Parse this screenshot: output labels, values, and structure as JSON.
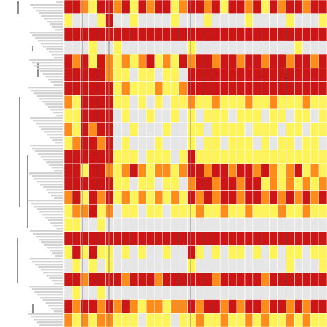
{
  "chart_data": {
    "type": "heatmap",
    "colors": [
      "#e6e6e6",
      "#fff35a",
      "#ff8c1a",
      "#cc1616"
    ],
    "values": [
      [
        3,
        3,
        2,
        1,
        3,
        3,
        2,
        3,
        1,
        3,
        2,
        3,
        3,
        1,
        2,
        3,
        3,
        2,
        3,
        1,
        3,
        3,
        2,
        3,
        1,
        3,
        2,
        3,
        3,
        2,
        3,
        3
      ],
      [
        1,
        0,
        0,
        0,
        1,
        3,
        0,
        0,
        1,
        0,
        0,
        0,
        0,
        1,
        0,
        0,
        0,
        1,
        0,
        0,
        0,
        0,
        1,
        0,
        0,
        0,
        0,
        1,
        0,
        0,
        0,
        1
      ],
      [
        3,
        3,
        3,
        3,
        3,
        3,
        3,
        3,
        3,
        3,
        3,
        3,
        3,
        3,
        3,
        3,
        3,
        3,
        3,
        3,
        3,
        3,
        3,
        3,
        3,
        3,
        3,
        3,
        3,
        3,
        3,
        3
      ],
      [
        0,
        0,
        0,
        1,
        0,
        0,
        1,
        0,
        0,
        0,
        0,
        0,
        0,
        0,
        0,
        1,
        0,
        0,
        0,
        0,
        0,
        0,
        0,
        0,
        0,
        0,
        0,
        0,
        1,
        0,
        0,
        0
      ],
      [
        3,
        2,
        3,
        1,
        3,
        2,
        1,
        2,
        1,
        2,
        3,
        1,
        2,
        1,
        3,
        2,
        3,
        3,
        2,
        3,
        3,
        2,
        3,
        3,
        2,
        3,
        3,
        2,
        3,
        3,
        2,
        3
      ],
      [
        3,
        3,
        3,
        3,
        3,
        2,
        1,
        1,
        0,
        1,
        1,
        0,
        1,
        1,
        0,
        3,
        3,
        3,
        3,
        3,
        3,
        3,
        3,
        3,
        3,
        3,
        3,
        3,
        3,
        3,
        3,
        3
      ],
      [
        3,
        3,
        3,
        3,
        3,
        3,
        1,
        2,
        1,
        1,
        1,
        2,
        1,
        1,
        2,
        3,
        3,
        3,
        3,
        3,
        3,
        3,
        3,
        3,
        3,
        3,
        3,
        3,
        3,
        3,
        3,
        3
      ],
      [
        2,
        1,
        3,
        3,
        3,
        3,
        1,
        1,
        0,
        1,
        0,
        1,
        0,
        1,
        1,
        2,
        1,
        1,
        2,
        1,
        1,
        1,
        2,
        1,
        1,
        2,
        1,
        1,
        1,
        2,
        1,
        1
      ],
      [
        1,
        1,
        3,
        3,
        3,
        3,
        0,
        1,
        0,
        0,
        1,
        0,
        0,
        1,
        0,
        1,
        0,
        1,
        1,
        1,
        0,
        1,
        1,
        1,
        0,
        1,
        1,
        0,
        1,
        1,
        0,
        1
      ],
      [
        2,
        1,
        3,
        2,
        3,
        3,
        0,
        0,
        1,
        0,
        0,
        0,
        1,
        0,
        0,
        1,
        1,
        0,
        1,
        1,
        1,
        1,
        0,
        1,
        1,
        1,
        0,
        1,
        1,
        0,
        1,
        1
      ],
      [
        1,
        2,
        3,
        3,
        2,
        3,
        0,
        1,
        0,
        0,
        0,
        1,
        0,
        0,
        0,
        1,
        0,
        1,
        1,
        0,
        1,
        1,
        1,
        0,
        1,
        0,
        1,
        1,
        0,
        1,
        1,
        0
      ],
      [
        3,
        3,
        3,
        3,
        3,
        3,
        1,
        1,
        1,
        0,
        1,
        1,
        1,
        0,
        1,
        3,
        1,
        1,
        1,
        1,
        1,
        1,
        1,
        1,
        1,
        1,
        1,
        1,
        1,
        1,
        1,
        1
      ],
      [
        3,
        3,
        1,
        3,
        3,
        2,
        1,
        2,
        3,
        2,
        1,
        2,
        2,
        1,
        2,
        3,
        3,
        2,
        3,
        3,
        2,
        3,
        3,
        2,
        3,
        2,
        1,
        2,
        3,
        1,
        2,
        1
      ],
      [
        3,
        3,
        3,
        3,
        3,
        3,
        1,
        1,
        0,
        1,
        1,
        0,
        1,
        1,
        0,
        2,
        3,
        3,
        2,
        3,
        3,
        2,
        3,
        3,
        1,
        2,
        1,
        2,
        1,
        2,
        1,
        2
      ],
      [
        2,
        3,
        1,
        3,
        2,
        3,
        1,
        2,
        1,
        2,
        1,
        2,
        1,
        2,
        1,
        3,
        2,
        3,
        2,
        3,
        3,
        2,
        3,
        3,
        2,
        3,
        2,
        3,
        2,
        3,
        2,
        3
      ],
      [
        1,
        2,
        2,
        3,
        1,
        2,
        0,
        1,
        1,
        0,
        1,
        1,
        0,
        1,
        1,
        1,
        2,
        1,
        1,
        2,
        1,
        1,
        2,
        1,
        1,
        1,
        2,
        1,
        1,
        2,
        1,
        1
      ],
      [
        1,
        1,
        0,
        0,
        1,
        0,
        0,
        0,
        0,
        0,
        0,
        0,
        0,
        0,
        0,
        0,
        0,
        0,
        0,
        0,
        0,
        0,
        0,
        0,
        0,
        0,
        0,
        0,
        0,
        0,
        0,
        0
      ],
      [
        3,
        3,
        3,
        3,
        3,
        3,
        3,
        3,
        3,
        3,
        3,
        3,
        3,
        3,
        3,
        3,
        3,
        3,
        3,
        3,
        3,
        3,
        3,
        3,
        3,
        3,
        3,
        3,
        3,
        3,
        3,
        3
      ],
      [
        1,
        3,
        1,
        3,
        1,
        1,
        0,
        1,
        0,
        1,
        0,
        0,
        1,
        0,
        0,
        3,
        1,
        0,
        1,
        0,
        1,
        1,
        0,
        1,
        0,
        1,
        0,
        1,
        1,
        0,
        1,
        1
      ],
      [
        0,
        1,
        0,
        1,
        0,
        1,
        0,
        0,
        0,
        0,
        0,
        0,
        0,
        0,
        0,
        1,
        0,
        0,
        0,
        0,
        0,
        0,
        0,
        0,
        0,
        0,
        0,
        1,
        0,
        0,
        0,
        1
      ],
      [
        3,
        3,
        2,
        3,
        3,
        3,
        3,
        2,
        3,
        3,
        3,
        2,
        3,
        3,
        3,
        3,
        3,
        3,
        2,
        3,
        3,
        3,
        3,
        3,
        2,
        3,
        3,
        3,
        3,
        3,
        3,
        3
      ],
      [
        0,
        1,
        0,
        0,
        1,
        0,
        0,
        0,
        0,
        0,
        0,
        0,
        0,
        0,
        0,
        0,
        0,
        0,
        0,
        0,
        0,
        0,
        0,
        0,
        0,
        0,
        0,
        0,
        0,
        0,
        0,
        0
      ],
      [
        3,
        2,
        3,
        3,
        2,
        3,
        2,
        3,
        2,
        1,
        2,
        2,
        1,
        2,
        2,
        3,
        2,
        3,
        3,
        2,
        3,
        2,
        3,
        3,
        2,
        3,
        3,
        2,
        3,
        2,
        3,
        3
      ],
      [
        2,
        1,
        2,
        1,
        2,
        2,
        1,
        1,
        1,
        0,
        1,
        1,
        1,
        0,
        1,
        1,
        2,
        1,
        1,
        2,
        1,
        1,
        2,
        1,
        2,
        1,
        1,
        2,
        1,
        2,
        1,
        1
      ]
    ]
  }
}
